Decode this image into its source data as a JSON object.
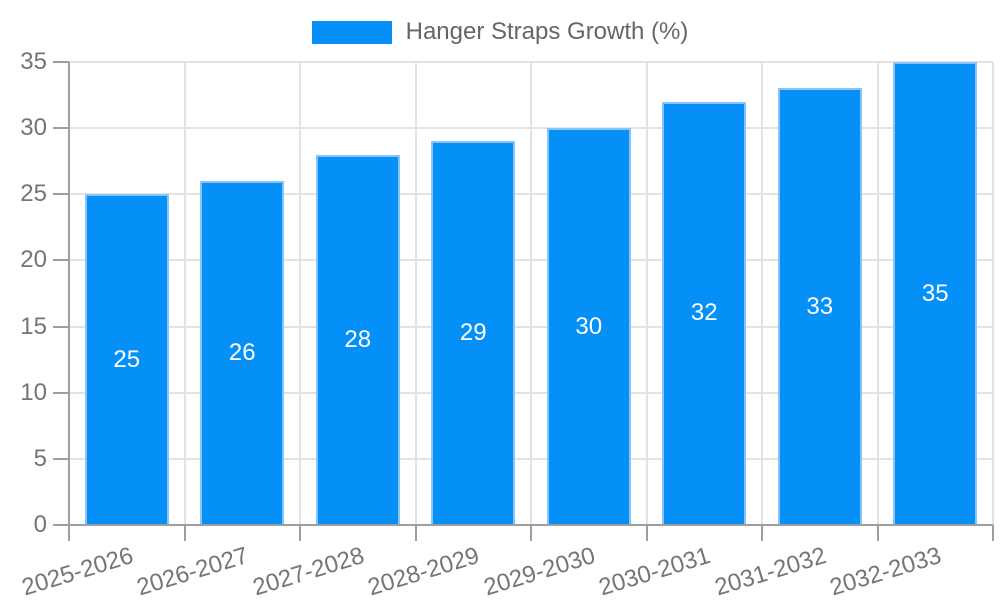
{
  "legend": {
    "label": "Hanger Straps Growth (%)"
  },
  "colors": {
    "background": "#ffffff",
    "bar_fill": "#0590f8",
    "bar_border": "#8ac4f7",
    "grid": "#e3e3e3",
    "axis": "#9e9e9e",
    "tick_label": "#757575",
    "legend_text": "#666666",
    "bar_value_label": "#ffffff"
  },
  "chart_data": {
    "type": "bar",
    "title": "Hanger Straps Growth (%)",
    "categories": [
      "2025-2026",
      "2026-2027",
      "2027-2028",
      "2028-2029",
      "2029-2030",
      "2030-2031",
      "2031-2032",
      "2032-2033"
    ],
    "values": [
      25,
      26,
      28,
      29,
      30,
      32,
      33,
      35
    ],
    "value_labels": [
      "25",
      "26",
      "28",
      "29",
      "30",
      "32",
      "33",
      "35"
    ],
    "xlabel": "",
    "ylabel": "",
    "ylim": [
      0,
      35
    ],
    "yticks": [
      0,
      5,
      10,
      15,
      20,
      25,
      30,
      35
    ],
    "grid": true,
    "legend_position": "top-center",
    "value_label_position": "inside-center",
    "x_label_rotation_deg": -17
  }
}
